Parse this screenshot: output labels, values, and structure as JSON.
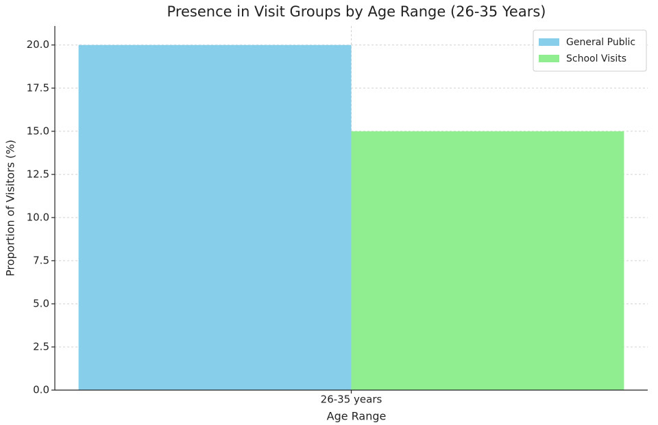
{
  "chart_data": {
    "type": "bar",
    "title": "Presence in Visit Groups by Age Range (26-35 Years)",
    "x_label": "Age Range",
    "y_label": "Proportion of Visitors (%)",
    "categories": [
      "26-35 years"
    ],
    "series": [
      {
        "name": "General Public",
        "color": "#87ceeb",
        "values": [
          20
        ]
      },
      {
        "name": "School Visits",
        "color": "#90ee90",
        "values": [
          15
        ]
      }
    ],
    "ylim": [
      0,
      21.1
    ],
    "yticks": [
      {
        "value": 0,
        "label": "0.0"
      },
      2.5,
      {
        "value": 5,
        "label": "5.0"
      },
      7.5,
      {
        "value": 10,
        "label": "10.0"
      },
      12.5,
      {
        "value": 15,
        "label": "15.0"
      },
      17.5,
      {
        "value": 20,
        "label": "20.0"
      }
    ],
    "grid": true,
    "legend": "upper right"
  }
}
